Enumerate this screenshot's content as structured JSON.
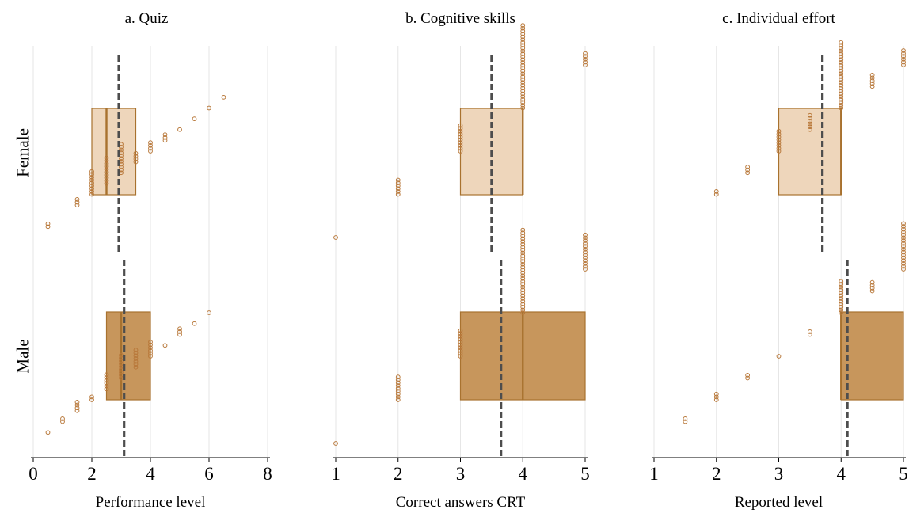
{
  "chart_data": [
    {
      "type": "box",
      "title": "a. Quiz",
      "xlabel": "Performance level",
      "xlim": [
        0,
        8
      ],
      "xticks": [
        0,
        2,
        4,
        6,
        8
      ],
      "groups": [
        "Female",
        "Male"
      ],
      "grid": true,
      "series": [
        {
          "group": "Female",
          "color": "#eed6bb",
          "box": {
            "q1": 2.0,
            "median": 2.5,
            "q3": 3.5
          },
          "mean": 2.92,
          "points": [
            {
              "x": 0.5,
              "n": 2
            },
            {
              "x": 1.5,
              "n": 3
            },
            {
              "x": 2.0,
              "n": 9
            },
            {
              "x": 2.5,
              "n": 10
            },
            {
              "x": 3.0,
              "n": 11
            },
            {
              "x": 3.5,
              "n": 4
            },
            {
              "x": 4.0,
              "n": 4
            },
            {
              "x": 4.5,
              "n": 3
            },
            {
              "x": 5.0,
              "n": 1
            },
            {
              "x": 5.5,
              "n": 1
            },
            {
              "x": 6.0,
              "n": 1
            },
            {
              "x": 6.5,
              "n": 1
            }
          ]
        },
        {
          "group": "Male",
          "color": "#c7965c",
          "box": {
            "q1": 2.5,
            "median": 3.0,
            "q3": 4.0
          },
          "mean": 3.1,
          "points": [
            {
              "x": 0.5,
              "n": 1
            },
            {
              "x": 1.0,
              "n": 2
            },
            {
              "x": 1.5,
              "n": 4
            },
            {
              "x": 2.0,
              "n": 2
            },
            {
              "x": 2.5,
              "n": 6
            },
            {
              "x": 3.0,
              "n": 9
            },
            {
              "x": 3.5,
              "n": 7
            },
            {
              "x": 4.0,
              "n": 6
            },
            {
              "x": 4.5,
              "n": 1
            },
            {
              "x": 5.0,
              "n": 3
            },
            {
              "x": 5.5,
              "n": 1
            },
            {
              "x": 6.0,
              "n": 1
            }
          ]
        }
      ]
    },
    {
      "type": "box",
      "title": "b. Cognitive skills",
      "xlabel": "Correct answers CRT",
      "xlim": [
        1,
        5
      ],
      "xticks": [
        1,
        2,
        3,
        4,
        5
      ],
      "groups": [
        "Female",
        "Male"
      ],
      "grid": true,
      "series": [
        {
          "group": "Female",
          "color": "#eed6bb",
          "box": {
            "q1": 3.0,
            "median": 4.0,
            "q3": 4.0
          },
          "mean": 3.5,
          "points": [
            {
              "x": 1,
              "n": 1
            },
            {
              "x": 2,
              "n": 6
            },
            {
              "x": 3,
              "n": 10
            },
            {
              "x": 4,
              "n": 30
            },
            {
              "x": 5,
              "n": 5
            }
          ]
        },
        {
          "group": "Male",
          "color": "#c7965c",
          "box": {
            "q1": 3.0,
            "median": 4.0,
            "q3": 5.0
          },
          "mean": 3.65,
          "points": [
            {
              "x": 1,
              "n": 1
            },
            {
              "x": 2,
              "n": 9
            },
            {
              "x": 3,
              "n": 10
            },
            {
              "x": 4,
              "n": 30
            },
            {
              "x": 5,
              "n": 13
            }
          ]
        }
      ]
    },
    {
      "type": "box",
      "title": "c. Individual effort",
      "xlabel": "Reported level",
      "xlim": [
        1,
        5
      ],
      "xticks": [
        1,
        2,
        3,
        4,
        5
      ],
      "groups": [
        "Female",
        "Male"
      ],
      "grid": true,
      "series": [
        {
          "group": "Female",
          "color": "#eed6bb",
          "box": {
            "q1": 3.0,
            "median": 4.0,
            "q3": 4.0
          },
          "mean": 3.7,
          "points": [
            {
              "x": 2,
              "n": 2
            },
            {
              "x": 2.5,
              "n": 3
            },
            {
              "x": 3,
              "n": 8
            },
            {
              "x": 3.5,
              "n": 6
            },
            {
              "x": 4,
              "n": 24
            },
            {
              "x": 4.5,
              "n": 5
            },
            {
              "x": 5,
              "n": 6
            }
          ]
        },
        {
          "group": "Male",
          "color": "#c7965c",
          "box": {
            "q1": 4.0,
            "median": 4.0,
            "q3": 5.0
          },
          "mean": 4.1,
          "points": [
            {
              "x": 1.5,
              "n": 2
            },
            {
              "x": 2,
              "n": 3
            },
            {
              "x": 2.5,
              "n": 2
            },
            {
              "x": 3,
              "n": 1
            },
            {
              "x": 3.5,
              "n": 2
            },
            {
              "x": 4,
              "n": 12
            },
            {
              "x": 4.5,
              "n": 4
            },
            {
              "x": 5,
              "n": 17
            }
          ]
        }
      ]
    }
  ]
}
